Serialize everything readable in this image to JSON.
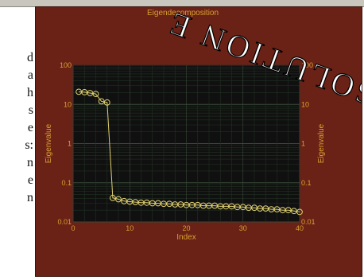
{
  "window": {
    "title": "Eigendecomposition"
  },
  "doc_text": {
    "lines": [
      "d",
      "a",
      "h",
      "s",
      "e",
      "s:",
      "n",
      "e",
      "n"
    ]
  },
  "watermark": {
    "text": "SOLUTION E"
  },
  "colors": {
    "panel": "#6a2116",
    "plot_bg": "#101010",
    "accent": "#d9a030",
    "line": "#e0d070"
  },
  "chart_data": {
    "type": "line",
    "title": "Eigendecomposition",
    "xlabel": "Index",
    "ylabel": "Eigenvalue",
    "y2label": "Eigenvalue",
    "xlim": [
      0,
      40
    ],
    "ylim": [
      0.01,
      100
    ],
    "yscale": "log",
    "grid": true,
    "x_ticks": [
      {
        "value": 0,
        "label": "0"
      },
      {
        "value": 10,
        "label": "10"
      },
      {
        "value": 20,
        "label": "20"
      },
      {
        "value": 30,
        "label": "30"
      },
      {
        "value": 40,
        "label": "40"
      }
    ],
    "y_ticks": [
      {
        "value": 100,
        "label": "100"
      },
      {
        "value": 10,
        "label": "10"
      },
      {
        "value": 1,
        "label": "1"
      },
      {
        "value": 0.1,
        "label": "0.1"
      },
      {
        "value": 0.01,
        "label": "0.01"
      }
    ],
    "y2_ticks": [
      {
        "value": 100,
        "label": "100"
      },
      {
        "value": 10,
        "label": "10"
      },
      {
        "value": 1,
        "label": "1"
      },
      {
        "value": 0.1,
        "label": "0.1"
      },
      {
        "value": 0.01,
        "label": "0.01"
      }
    ],
    "series": [
      {
        "x": [
          1,
          2,
          3,
          4,
          5,
          6,
          7,
          8,
          9,
          10,
          11,
          12,
          13,
          14,
          15,
          16,
          17,
          18,
          19,
          20,
          21,
          22,
          23,
          24,
          25,
          26,
          27,
          28,
          29,
          30,
          31,
          32,
          33,
          34,
          35,
          36,
          37,
          38,
          39,
          40
        ],
        "y": [
          21,
          20.5,
          19.5,
          18.5,
          12,
          11.2,
          0.041,
          0.038,
          0.034,
          0.033,
          0.032,
          0.031,
          0.031,
          0.03,
          0.03,
          0.029,
          0.029,
          0.028,
          0.028,
          0.027,
          0.027,
          0.027,
          0.026,
          0.026,
          0.026,
          0.025,
          0.025,
          0.025,
          0.024,
          0.024,
          0.023,
          0.023,
          0.022,
          0.022,
          0.021,
          0.021,
          0.02,
          0.02,
          0.019,
          0.018
        ]
      }
    ]
  }
}
